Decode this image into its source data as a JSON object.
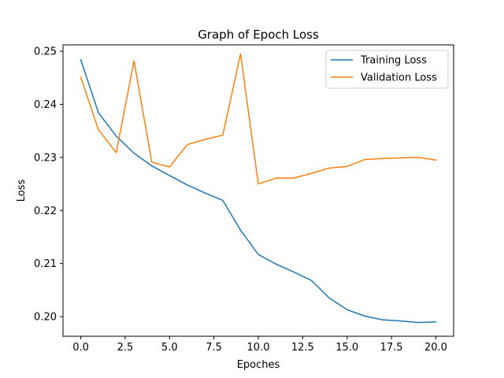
{
  "chart_data": {
    "type": "line",
    "title": "Graph of Epoch Loss",
    "xlabel": "Epoches",
    "ylabel": "Loss",
    "xlim": [
      -1.0,
      21.0
    ],
    "ylim": [
      0.1963,
      0.2512
    ],
    "xticks": [
      0.0,
      2.5,
      5.0,
      7.5,
      10.0,
      12.5,
      15.0,
      17.5,
      20.0
    ],
    "xtick_labels": [
      "0.0",
      "2.5",
      "5.0",
      "7.5",
      "10.0",
      "12.5",
      "15.0",
      "17.5",
      "20.0"
    ],
    "yticks": [
      0.2,
      0.21,
      0.22,
      0.23,
      0.24,
      0.25
    ],
    "ytick_labels": [
      "0.20",
      "0.21",
      "0.22",
      "0.23",
      "0.24",
      "0.25"
    ],
    "grid": false,
    "legend_position": "top-right",
    "x": [
      0,
      1,
      2,
      3,
      4,
      5,
      6,
      7,
      8,
      9,
      10,
      11,
      12,
      13,
      14,
      15,
      16,
      17,
      18,
      19,
      20
    ],
    "series": [
      {
        "name": "Training Loss",
        "color": "#1f77b4",
        "values": [
          0.2484,
          0.2384,
          0.234,
          0.2308,
          0.2284,
          0.2266,
          0.2248,
          0.2233,
          0.2219,
          0.2163,
          0.2117,
          0.2099,
          0.2084,
          0.2068,
          0.2035,
          0.2013,
          0.2001,
          0.1994,
          0.1992,
          0.1989,
          0.199
        ]
      },
      {
        "name": "Validation Loss",
        "color": "#ff7f0e",
        "values": [
          0.2451,
          0.2352,
          0.2309,
          0.2482,
          0.2291,
          0.2282,
          0.2324,
          0.2334,
          0.2342,
          0.2495,
          0.225,
          0.2261,
          0.2261,
          0.227,
          0.228,
          0.2283,
          0.2296,
          0.2298,
          0.2299,
          0.23,
          0.2295
        ]
      }
    ]
  }
}
